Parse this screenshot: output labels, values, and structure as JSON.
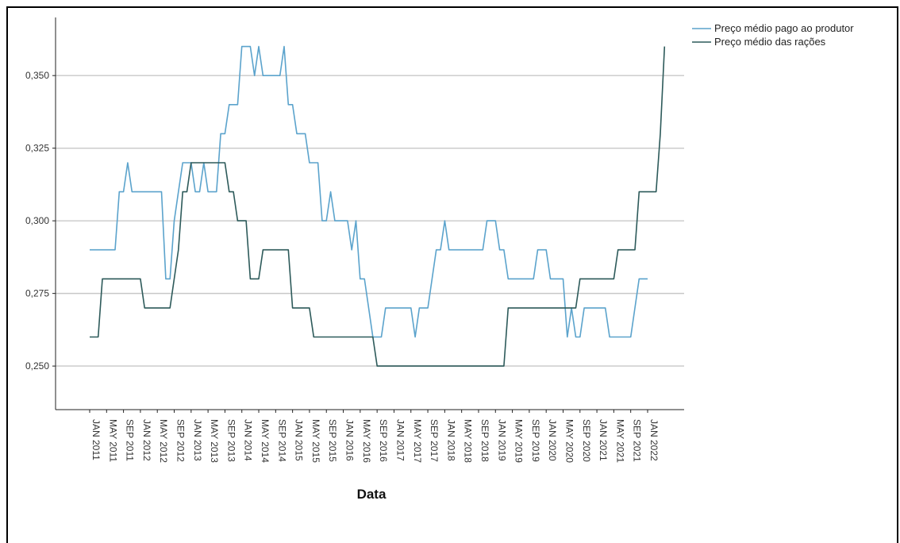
{
  "chart_data": {
    "type": "line",
    "xlabel": "Data",
    "ylabel": "",
    "ylim": [
      0.235,
      0.37
    ],
    "y_ticks": [
      "0,250",
      "0,275",
      "0,300",
      "0,325",
      "0,350"
    ],
    "y_tick_values": [
      0.25,
      0.275,
      0.3,
      0.325,
      0.35
    ],
    "x_range": [
      "2011-01",
      "2022-06"
    ],
    "x_ticks": [
      "JAN 2011",
      "MAY 2011",
      "SEP 2011",
      "JAN 2012",
      "MAY 2012",
      "SEP 2012",
      "JAN 2013",
      "MAY 2013",
      "SEP 2013",
      "JAN 2014",
      "MAY 2014",
      "SEP 2014",
      "JAN 2015",
      "MAY 2015",
      "SEP 2015",
      "JAN 2016",
      "MAY 2016",
      "SEP 2016",
      "JAN 2017",
      "MAY 2017",
      "SEP 2017",
      "JAN 2018",
      "MAY 2018",
      "SEP 2018",
      "JAN 2019",
      "MAY 2019",
      "SEP 2019",
      "JAN 2020",
      "MAY 2020",
      "SEP 2020",
      "JAN 2021",
      "MAY 2021",
      "SEP 2021",
      "JAN 2022"
    ],
    "grid": "horizontal",
    "legend": "top-right",
    "series": [
      {
        "name": "Preço médio pago ao produtor",
        "color": "#5ba3cc",
        "points": [
          [
            "2011-01",
            0.29
          ],
          [
            "2011-07",
            0.29
          ],
          [
            "2011-08",
            0.31
          ],
          [
            "2011-09",
            0.31
          ],
          [
            "2011-10",
            0.32
          ],
          [
            "2011-11",
            0.31
          ],
          [
            "2012-06",
            0.31
          ],
          [
            "2012-07",
            0.28
          ],
          [
            "2012-08",
            0.28
          ],
          [
            "2012-09",
            0.3
          ],
          [
            "2012-10",
            0.31
          ],
          [
            "2012-11",
            0.32
          ],
          [
            "2013-01",
            0.32
          ],
          [
            "2013-02",
            0.31
          ],
          [
            "2013-03",
            0.31
          ],
          [
            "2013-04",
            0.32
          ],
          [
            "2013-05",
            0.31
          ],
          [
            "2013-07",
            0.31
          ],
          [
            "2013-08",
            0.33
          ],
          [
            "2013-09",
            0.33
          ],
          [
            "2013-10",
            0.34
          ],
          [
            "2013-12",
            0.34
          ],
          [
            "2014-01",
            0.36
          ],
          [
            "2014-03",
            0.36
          ],
          [
            "2014-04",
            0.35
          ],
          [
            "2014-05",
            0.36
          ],
          [
            "2014-06",
            0.35
          ],
          [
            "2014-10",
            0.35
          ],
          [
            "2014-11",
            0.36
          ],
          [
            "2014-12",
            0.34
          ],
          [
            "2015-01",
            0.34
          ],
          [
            "2015-02",
            0.33
          ],
          [
            "2015-04",
            0.33
          ],
          [
            "2015-05",
            0.32
          ],
          [
            "2015-07",
            0.32
          ],
          [
            "2015-08",
            0.3
          ],
          [
            "2015-09",
            0.3
          ],
          [
            "2015-10",
            0.31
          ],
          [
            "2015-11",
            0.3
          ],
          [
            "2016-02",
            0.3
          ],
          [
            "2016-03",
            0.29
          ],
          [
            "2016-04",
            0.3
          ],
          [
            "2016-05",
            0.28
          ],
          [
            "2016-06",
            0.28
          ],
          [
            "2016-07",
            0.27
          ],
          [
            "2016-08",
            0.26
          ],
          [
            "2016-10",
            0.26
          ],
          [
            "2016-11",
            0.27
          ],
          [
            "2017-05",
            0.27
          ],
          [
            "2017-06",
            0.26
          ],
          [
            "2017-07",
            0.27
          ],
          [
            "2017-09",
            0.27
          ],
          [
            "2017-10",
            0.28
          ],
          [
            "2017-11",
            0.29
          ],
          [
            "2017-12",
            0.29
          ],
          [
            "2018-01",
            0.3
          ],
          [
            "2018-02",
            0.29
          ],
          [
            "2018-10",
            0.29
          ],
          [
            "2018-11",
            0.3
          ],
          [
            "2019-01",
            0.3
          ],
          [
            "2019-02",
            0.29
          ],
          [
            "2019-03",
            0.29
          ],
          [
            "2019-04",
            0.28
          ],
          [
            "2019-10",
            0.28
          ],
          [
            "2019-11",
            0.29
          ],
          [
            "2020-01",
            0.29
          ],
          [
            "2020-02",
            0.28
          ],
          [
            "2020-05",
            0.28
          ],
          [
            "2020-06",
            0.26
          ],
          [
            "2020-07",
            0.27
          ],
          [
            "2020-08",
            0.26
          ],
          [
            "2020-09",
            0.26
          ],
          [
            "2020-10",
            0.27
          ],
          [
            "2021-03",
            0.27
          ],
          [
            "2021-04",
            0.26
          ],
          [
            "2021-09",
            0.26
          ],
          [
            "2021-11",
            0.28
          ],
          [
            "2022-01",
            0.28
          ]
        ]
      },
      {
        "name": "Preço médio das rações",
        "color": "#2d5a5a",
        "points": [
          [
            "2011-01",
            0.26
          ],
          [
            "2011-03",
            0.26
          ],
          [
            "2011-04",
            0.28
          ],
          [
            "2012-01",
            0.28
          ],
          [
            "2012-02",
            0.27
          ],
          [
            "2012-08",
            0.27
          ],
          [
            "2012-09",
            0.28
          ],
          [
            "2012-10",
            0.29
          ],
          [
            "2012-11",
            0.31
          ],
          [
            "2012-12",
            0.31
          ],
          [
            "2013-01",
            0.32
          ],
          [
            "2013-09",
            0.32
          ],
          [
            "2013-10",
            0.31
          ],
          [
            "2013-11",
            0.31
          ],
          [
            "2013-12",
            0.3
          ],
          [
            "2014-02",
            0.3
          ],
          [
            "2014-03",
            0.28
          ],
          [
            "2014-05",
            0.28
          ],
          [
            "2014-06",
            0.29
          ],
          [
            "2014-12",
            0.29
          ],
          [
            "2015-01",
            0.27
          ],
          [
            "2015-05",
            0.27
          ],
          [
            "2015-06",
            0.26
          ],
          [
            "2016-08",
            0.26
          ],
          [
            "2016-09",
            0.25
          ],
          [
            "2019-03",
            0.25
          ],
          [
            "2019-04",
            0.27
          ],
          [
            "2020-08",
            0.27
          ],
          [
            "2020-09",
            0.28
          ],
          [
            "2021-05",
            0.28
          ],
          [
            "2021-06",
            0.29
          ],
          [
            "2021-10",
            0.29
          ],
          [
            "2021-11",
            0.31
          ],
          [
            "2022-03",
            0.31
          ],
          [
            "2022-04",
            0.33
          ],
          [
            "2022-05",
            0.36
          ]
        ]
      }
    ]
  }
}
